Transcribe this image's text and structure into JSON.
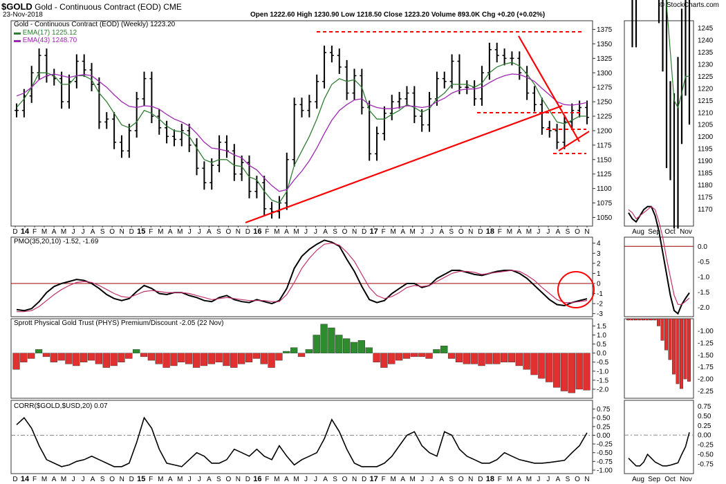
{
  "header": {
    "symbol": "$GOLD",
    "name": "Gold - Continuous Contract (EOD)",
    "exchange": "CME",
    "date": "23-Nov-2018",
    "quote": "Open 1222.60   High 1230.90   Low 1218.50   Close 1223.20   Volume 893.0K   Chg +0.20 (+0.02%)",
    "brand": "© StockCharts.com"
  },
  "colors": {
    "price": "#000000",
    "ema17": "#2e7d32",
    "ema43": "#9c27b0",
    "trend": "#ff0000",
    "up": "#2e8b2e",
    "down": "#e03030",
    "pmo_signal": "#c0306a",
    "zero_line": "#990000"
  },
  "chart_data": [
    {
      "type": "ohlc",
      "title": "Gold - Continuous Contract (EOD) (Weekly) 1223.20",
      "legend": [
        "EMA(17) 1225.12",
        "EMA(43) 1248.70"
      ],
      "x_ticks": [
        "D",
        "14",
        "F",
        "M",
        "A",
        "M",
        "J",
        "J",
        "A",
        "S",
        "O",
        "N",
        "D",
        "15",
        "F",
        "M",
        "A",
        "M",
        "J",
        "J",
        "A",
        "S",
        "O",
        "N",
        "D",
        "16",
        "F",
        "M",
        "A",
        "M",
        "J",
        "J",
        "A",
        "S",
        "O",
        "N",
        "D",
        "17",
        "F",
        "M",
        "A",
        "M",
        "J",
        "J",
        "A",
        "S",
        "O",
        "N",
        "D",
        "18",
        "F",
        "M",
        "A",
        "M",
        "J",
        "J",
        "A",
        "S",
        "O",
        "N"
      ],
      "y_ticks": [
        1050,
        1075,
        1100,
        1125,
        1150,
        1175,
        1200,
        1225,
        1250,
        1275,
        1300,
        1325,
        1350,
        1375
      ],
      "ylim": [
        1035,
        1390
      ],
      "close": [
        1235,
        1260,
        1300,
        1330,
        1295,
        1290,
        1250,
        1285,
        1320,
        1305,
        1280,
        1215,
        1220,
        1180,
        1165,
        1200,
        1255,
        1290,
        1225,
        1205,
        1190,
        1185,
        1200,
        1175,
        1135,
        1110,
        1140,
        1180,
        1165,
        1125,
        1145,
        1095,
        1110,
        1065,
        1060,
        1075,
        1150,
        1245,
        1235,
        1250,
        1285,
        1335,
        1330,
        1310,
        1265,
        1295,
        1240,
        1160,
        1195,
        1230,
        1250,
        1255,
        1265,
        1225,
        1210,
        1255,
        1290,
        1285,
        1320,
        1275,
        1275,
        1255,
        1300,
        1340,
        1330,
        1325,
        1325,
        1300,
        1265,
        1245,
        1205,
        1200,
        1180,
        1215,
        1235,
        1240,
        1223
      ],
      "series": [
        {
          "name": "EMA(17) 1225.12",
          "color": "#2e7d32",
          "values": [
            1240,
            1255,
            1275,
            1300,
            1300,
            1295,
            1280,
            1280,
            1295,
            1295,
            1288,
            1265,
            1250,
            1230,
            1210,
            1205,
            1215,
            1235,
            1230,
            1220,
            1208,
            1200,
            1198,
            1190,
            1170,
            1150,
            1145,
            1150,
            1150,
            1140,
            1138,
            1120,
            1115,
            1095,
            1080,
            1075,
            1095,
            1140,
            1165,
            1190,
            1220,
            1255,
            1280,
            1290,
            1285,
            1288,
            1275,
            1235,
            1220,
            1220,
            1228,
            1235,
            1245,
            1240,
            1232,
            1238,
            1255,
            1265,
            1280,
            1280,
            1280,
            1275,
            1282,
            1300,
            1310,
            1315,
            1318,
            1312,
            1298,
            1280,
            1255,
            1235,
            1215,
            1212,
            1218,
            1225,
            1225
          ]
        },
        {
          "name": "EMA(43) 1248.70",
          "color": "#9c27b0",
          "values": [
            1260,
            1265,
            1275,
            1288,
            1295,
            1298,
            1295,
            1292,
            1295,
            1297,
            1295,
            1285,
            1275,
            1262,
            1250,
            1242,
            1240,
            1243,
            1242,
            1237,
            1228,
            1220,
            1215,
            1208,
            1195,
            1180,
            1170,
            1168,
            1165,
            1158,
            1153,
            1140,
            1132,
            1118,
            1105,
            1095,
            1098,
            1115,
            1130,
            1148,
            1170,
            1195,
            1218,
            1235,
            1245,
            1253,
            1255,
            1245,
            1240,
            1238,
            1238,
            1240,
            1243,
            1242,
            1240,
            1242,
            1250,
            1256,
            1265,
            1270,
            1272,
            1272,
            1275,
            1283,
            1290,
            1295,
            1298,
            1297,
            1292,
            1285,
            1273,
            1262,
            1250,
            1245,
            1244,
            1246,
            1248.7
          ]
        }
      ],
      "annotations": [
        "resistance 1380",
        "support 1240",
        "support 1160",
        "support 1205",
        "rising trendline",
        "falling trendline"
      ]
    },
    {
      "type": "line",
      "title": "PMO(35,20,10) -1.52, -1.69",
      "y_ticks": [
        4,
        3,
        2,
        1,
        0,
        -1,
        -2,
        -3
      ],
      "ylim": [
        -3.3,
        4.6
      ],
      "series": [
        {
          "name": "PMO(35,20,10) -1.52",
          "color": "#000000",
          "values": [
            -2.6,
            -2.7,
            -2.5,
            -1.8,
            -0.9,
            -0.3,
            0.0,
            0.2,
            0.4,
            0.3,
            0.0,
            -0.5,
            -1.1,
            -1.5,
            -1.7,
            -1.5,
            -0.8,
            -0.2,
            -0.5,
            -1.0,
            -1.1,
            -0.9,
            -0.9,
            -1.2,
            -1.4,
            -1.7,
            -1.8,
            -1.4,
            -1.2,
            -1.6,
            -1.8,
            -1.9,
            -1.6,
            -1.8,
            -2.0,
            -1.7,
            -0.5,
            1.5,
            2.7,
            3.4,
            3.9,
            4.3,
            4.1,
            3.7,
            2.4,
            1.2,
            -0.3,
            -1.6,
            -1.9,
            -1.7,
            -1.0,
            -0.5,
            0.0,
            0.0,
            -0.4,
            -0.2,
            0.5,
            0.9,
            1.3,
            1.3,
            1.1,
            0.9,
            0.8,
            1.0,
            1.2,
            1.3,
            1.3,
            1.0,
            0.5,
            -0.2,
            -0.9,
            -1.6,
            -2.1,
            -2.2,
            -1.9,
            -1.7,
            -1.52
          ]
        },
        {
          "name": "signal -1.69",
          "color": "#c0306a",
          "values": [
            -2.8,
            -2.8,
            -2.7,
            -2.3,
            -1.7,
            -1.1,
            -0.6,
            -0.2,
            0.1,
            0.2,
            0.1,
            -0.2,
            -0.6,
            -1.0,
            -1.3,
            -1.4,
            -1.1,
            -0.8,
            -0.7,
            -0.8,
            -0.9,
            -0.9,
            -0.9,
            -1.0,
            -1.2,
            -1.4,
            -1.6,
            -1.5,
            -1.4,
            -1.5,
            -1.6,
            -1.7,
            -1.7,
            -1.7,
            -1.8,
            -1.8,
            -1.1,
            0.1,
            1.5,
            2.5,
            3.3,
            3.9,
            4.0,
            3.8,
            3.1,
            2.2,
            0.9,
            -0.4,
            -1.2,
            -1.5,
            -1.3,
            -0.9,
            -0.4,
            -0.2,
            -0.3,
            -0.2,
            0.2,
            0.6,
            1.0,
            1.2,
            1.2,
            1.1,
            0.9,
            1.0,
            1.1,
            1.2,
            1.3,
            1.2,
            0.8,
            0.3,
            -0.4,
            -1.0,
            -1.6,
            -1.9,
            -1.9,
            -1.8,
            -1.69
          ]
        }
      ]
    },
    {
      "type": "bar",
      "title": "Sprott Physical Gold Trust (PHYS) Premium/Discount -2.05 (22 Nov)",
      "y_ticks": [
        1.5,
        1.0,
        0.5,
        0.0,
        -0.5,
        -1.0,
        -1.5,
        -2.0
      ],
      "ylim": [
        -2.5,
        1.9
      ],
      "values": [
        -0.9,
        -0.5,
        -0.3,
        0.2,
        -0.2,
        -0.5,
        -0.4,
        -0.6,
        -0.7,
        -0.5,
        -0.4,
        -0.6,
        -0.8,
        -0.7,
        -0.5,
        -0.3,
        0.2,
        -0.2,
        -0.4,
        -0.6,
        -0.8,
        -0.7,
        -0.5,
        -0.6,
        -0.8,
        -0.7,
        -0.6,
        -0.5,
        -0.7,
        -0.8,
        -0.6,
        -0.5,
        -0.3,
        -0.6,
        -0.8,
        -0.4,
        0.1,
        0.3,
        -0.2,
        0.2,
        1.0,
        1.6,
        1.4,
        1.0,
        0.8,
        0.6,
        0.7,
        0.3,
        -0.5,
        -0.8,
        -0.6,
        -0.4,
        -0.3,
        -0.2,
        -0.2,
        -0.3,
        0.2,
        0.4,
        -0.3,
        -0.5,
        -0.6,
        -0.6,
        -0.7,
        -0.6,
        -0.6,
        -0.5,
        -0.5,
        -0.7,
        -0.9,
        -1.2,
        -1.4,
        -1.6,
        -1.9,
        -2.1,
        -2.2,
        -2.0,
        -2.05
      ]
    },
    {
      "type": "line",
      "title": "CORR($GOLD,$USD,20) 0.07",
      "y_ticks": [
        0.75,
        0.5,
        0.25,
        0.0,
        -0.25,
        -0.5,
        -0.75,
        -1.0
      ],
      "ylim": [
        -1.1,
        1.0
      ],
      "series": [
        {
          "name": "CORR($GOLD,$USD,20) 0.07",
          "color": "#000000",
          "values": [
            0.3,
            0.5,
            0.2,
            -0.3,
            -0.7,
            -0.8,
            -0.9,
            -0.85,
            -0.75,
            -0.7,
            -0.6,
            -0.7,
            -0.8,
            -0.9,
            -0.9,
            -0.8,
            -0.2,
            0.5,
            0.2,
            -0.4,
            -0.8,
            -0.85,
            -0.9,
            -0.7,
            -0.5,
            -0.6,
            -0.8,
            -0.8,
            -0.7,
            -0.4,
            -0.5,
            -0.6,
            -0.4,
            -0.6,
            -0.7,
            -0.3,
            -0.6,
            -0.85,
            -0.7,
            -0.6,
            -0.5,
            -0.1,
            0.45,
            0.1,
            -0.4,
            -0.8,
            -0.9,
            -0.9,
            -0.9,
            -0.8,
            -0.6,
            -0.3,
            0.0,
            0.1,
            -0.3,
            -0.5,
            -0.6,
            0.1,
            0.0,
            -0.4,
            -0.6,
            -0.7,
            -0.8,
            -0.8,
            -0.7,
            -0.5,
            -0.6,
            -0.7,
            -0.75,
            -0.8,
            -0.8,
            -0.78,
            -0.75,
            -0.72,
            -0.5,
            -0.3,
            0.07
          ]
        }
      ]
    }
  ],
  "zoom": {
    "x_ticks": [
      "Aug",
      "Sep",
      "Oct",
      "Nov"
    ],
    "price_y_ticks": [
      1245,
      1240,
      1235,
      1230,
      1225,
      1220,
      1215,
      1210,
      1205,
      1200,
      1195,
      1190,
      1185,
      1180,
      1175,
      1170
    ],
    "price_ylim": [
      1163,
      1248
    ],
    "pmo_y_ticks": [
      "0.0",
      "-0.5",
      "-1.0",
      "-1.5",
      "-2.0"
    ],
    "pmo_ylim": [
      -2.3,
      0.3
    ],
    "pd_y_ticks": [
      "-1.00",
      "-1.25",
      "-1.50",
      "-1.75",
      "-2.00",
      "-2.25"
    ],
    "pd_ylim": [
      -2.4,
      -0.75
    ],
    "corr_y_ticks": [
      "0.75",
      "0.50",
      "0.25",
      "0.00",
      "-0.25",
      "-0.50",
      "-0.75"
    ],
    "corr_ylim": [
      -1.0,
      0.9
    ]
  }
}
